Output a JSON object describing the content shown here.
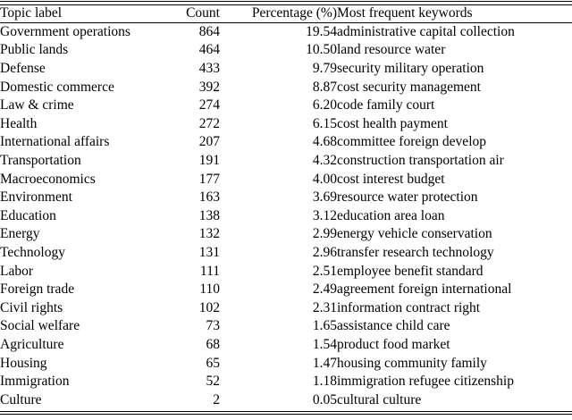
{
  "table": {
    "columns": {
      "topic": "Topic label",
      "count": "Count",
      "percentage": "Percentage (%)",
      "keywords": "Most frequent keywords"
    },
    "rows": [
      {
        "topic": "Government operations",
        "count": "864",
        "percentage": "19.54",
        "keywords": "administrative capital collection"
      },
      {
        "topic": "Public lands",
        "count": "464",
        "percentage": "10.50",
        "keywords": "land resource water"
      },
      {
        "topic": "Defense",
        "count": "433",
        "percentage": "9.79",
        "keywords": "security military operation"
      },
      {
        "topic": "Domestic commerce",
        "count": "392",
        "percentage": "8.87",
        "keywords": "cost security management"
      },
      {
        "topic": "Law & crime",
        "count": "274",
        "percentage": "6.20",
        "keywords": "code family court"
      },
      {
        "topic": "Health",
        "count": "272",
        "percentage": "6.15",
        "keywords": "cost health payment"
      },
      {
        "topic": "International affairs",
        "count": "207",
        "percentage": "4.68",
        "keywords": "committee foreign develop"
      },
      {
        "topic": "Transportation",
        "count": "191",
        "percentage": "4.32",
        "keywords": "construction transportation air"
      },
      {
        "topic": "Macroeconomics",
        "count": "177",
        "percentage": "4.00",
        "keywords": "cost interest budget"
      },
      {
        "topic": "Environment",
        "count": "163",
        "percentage": "3.69",
        "keywords": "resource water protection"
      },
      {
        "topic": "Education",
        "count": "138",
        "percentage": "3.12",
        "keywords": "education area loan"
      },
      {
        "topic": "Energy",
        "count": "132",
        "percentage": "2.99",
        "keywords": "energy vehicle conservation"
      },
      {
        "topic": "Technology",
        "count": "131",
        "percentage": "2.96",
        "keywords": "transfer research technology"
      },
      {
        "topic": "Labor",
        "count": "111",
        "percentage": "2.51",
        "keywords": "employee benefit standard"
      },
      {
        "topic": "Foreign trade",
        "count": "110",
        "percentage": "2.49",
        "keywords": "agreement foreign international"
      },
      {
        "topic": "Civil rights",
        "count": "102",
        "percentage": "2.31",
        "keywords": "information contract right"
      },
      {
        "topic": "Social welfare",
        "count": "73",
        "percentage": "1.65",
        "keywords": "assistance child care"
      },
      {
        "topic": "Agriculture",
        "count": "68",
        "percentage": "1.54",
        "keywords": "product food market"
      },
      {
        "topic": "Housing",
        "count": "65",
        "percentage": "1.47",
        "keywords": "housing community family"
      },
      {
        "topic": "Immigration",
        "count": "52",
        "percentage": "1.18",
        "keywords": "immigration refugee citizenship"
      },
      {
        "topic": "Culture",
        "count": "2",
        "percentage": "0.05",
        "keywords": "cultural culture"
      }
    ]
  },
  "colors": {
    "text": "#000000",
    "background": "#ffffff",
    "rule": "#000000"
  }
}
